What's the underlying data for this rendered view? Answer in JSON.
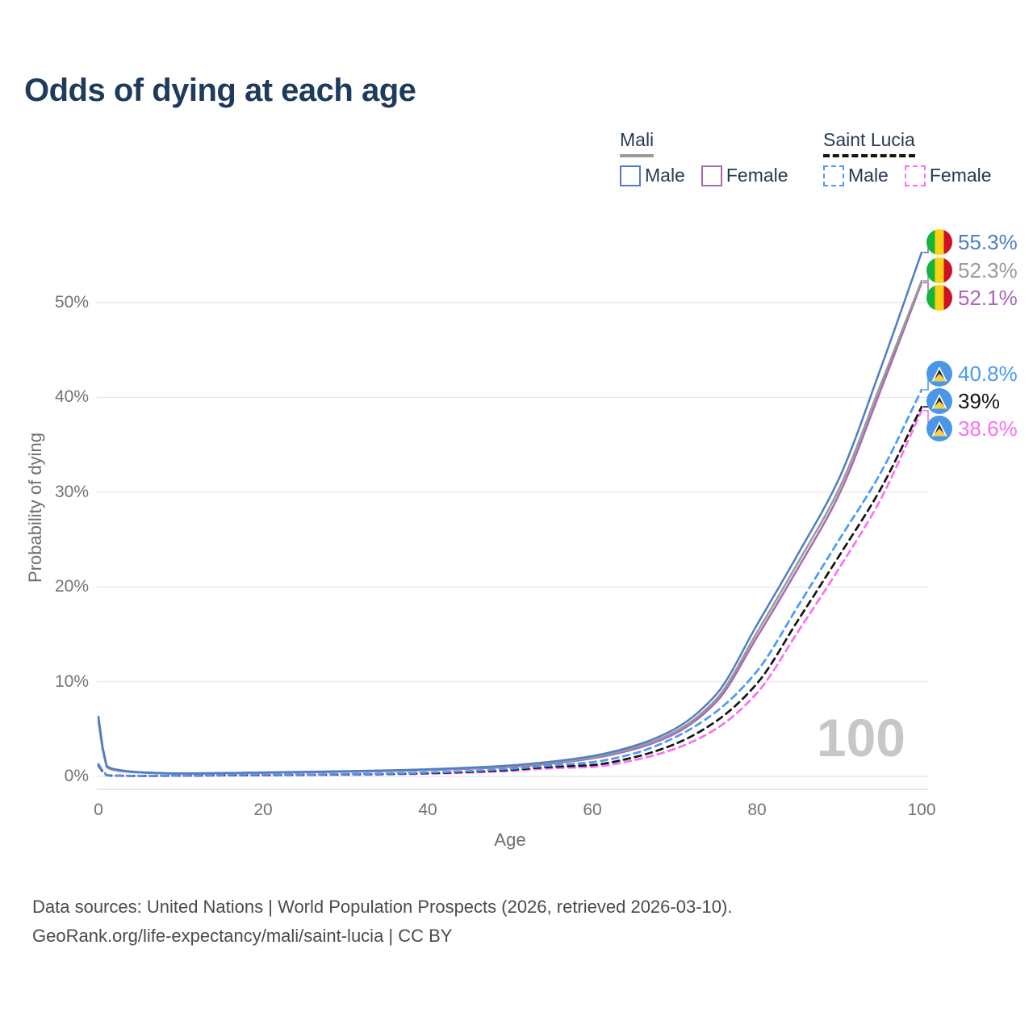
{
  "title": "Odds of dying at each age",
  "legend": {
    "mali": {
      "name": "Mali",
      "sample_style": "solid",
      "sample_color": "#9a9a9a",
      "male_label": "Male",
      "female_label": "Female"
    },
    "saint_lucia": {
      "name": "Saint Lucia",
      "sample_style": "dashed",
      "sample_color": "#151515",
      "male_label": "Male",
      "female_label": "Female"
    }
  },
  "chart_data": {
    "type": "line",
    "title": "Odds of dying at each age",
    "xlabel": "Age",
    "ylabel": "Probability of dying",
    "xlim": [
      0,
      100
    ],
    "ylim_percent": [
      0,
      57
    ],
    "grid": "horizontal",
    "legend_position": "top-right",
    "age_counter": "100",
    "x_ticks": {
      "values": [
        0,
        20,
        40,
        60,
        80,
        100
      ],
      "labels": [
        "0",
        "20",
        "40",
        "60",
        "80",
        "100"
      ]
    },
    "y_ticks": {
      "values": [
        0,
        10,
        20,
        30,
        40,
        50
      ],
      "labels": [
        "0%",
        "10%",
        "20%",
        "30%",
        "40%",
        "50%"
      ]
    },
    "x": [
      0,
      1,
      2,
      5,
      10,
      15,
      20,
      25,
      30,
      35,
      40,
      45,
      50,
      55,
      60,
      65,
      70,
      75,
      80,
      85,
      90,
      95,
      100
    ],
    "series": [
      {
        "name": "Mali Male",
        "country": "Mali",
        "sex": "Male",
        "line_style": "solid",
        "color": "#4d7ec4",
        "flag": "mali",
        "end_label": "55.3%",
        "values_percent": [
          6.3,
          1.1,
          0.75,
          0.45,
          0.32,
          0.35,
          0.42,
          0.48,
          0.55,
          0.63,
          0.75,
          0.92,
          1.15,
          1.55,
          2.15,
          3.2,
          5.0,
          8.6,
          16.0,
          23.5,
          31.5,
          43.0,
          55.3
        ]
      },
      {
        "name": "Mali Combined",
        "country": "Mali",
        "sex": "Combined",
        "line_style": "solid",
        "color": "#9a9a9a",
        "flag": "mali",
        "end_label": "52.3%",
        "values_percent": [
          6.05,
          1.02,
          0.7,
          0.42,
          0.3,
          0.33,
          0.39,
          0.45,
          0.51,
          0.59,
          0.7,
          0.86,
          1.08,
          1.45,
          2.0,
          3.0,
          4.7,
          8.1,
          15.2,
          22.6,
          30.4,
          41.3,
          52.3
        ]
      },
      {
        "name": "Mali Female",
        "country": "Mali",
        "sex": "Female",
        "line_style": "solid",
        "color": "#a868b3",
        "flag": "mali",
        "end_label": "52.1%",
        "values_percent": [
          5.8,
          0.95,
          0.65,
          0.4,
          0.28,
          0.31,
          0.37,
          0.42,
          0.48,
          0.55,
          0.66,
          0.8,
          1.0,
          1.35,
          1.9,
          2.85,
          4.5,
          7.8,
          14.7,
          22.0,
          29.8,
          40.7,
          52.1
        ]
      },
      {
        "name": "Saint Lucia Male",
        "country": "Saint Lucia",
        "sex": "Male",
        "line_style": "dashed",
        "color": "#4a9af5",
        "flag": "saint-lucia",
        "end_label": "40.8%",
        "values_percent": [
          1.3,
          0.15,
          0.09,
          0.06,
          0.08,
          0.13,
          0.17,
          0.2,
          0.24,
          0.3,
          0.4,
          0.55,
          0.8,
          1.15,
          1.5,
          2.4,
          4.1,
          6.8,
          11.1,
          18.0,
          25.0,
          32.0,
          40.8
        ]
      },
      {
        "name": "Saint Lucia Combined",
        "country": "Saint Lucia",
        "sex": "Combined",
        "line_style": "dashed",
        "color": "#151515",
        "flag": "saint-lucia",
        "end_label": "39%",
        "values_percent": [
          1.2,
          0.13,
          0.08,
          0.05,
          0.07,
          0.11,
          0.14,
          0.17,
          0.21,
          0.26,
          0.34,
          0.47,
          0.68,
          1.0,
          1.2,
          2.0,
          3.4,
          5.8,
          9.8,
          16.5,
          23.3,
          30.3,
          39.0
        ]
      },
      {
        "name": "Saint Lucia Female",
        "country": "Saint Lucia",
        "sex": "Female",
        "line_style": "dashed",
        "color": "#fb70f1",
        "flag": "saint-lucia",
        "end_label": "38.6%",
        "values_percent": [
          1.1,
          0.11,
          0.07,
          0.05,
          0.06,
          0.09,
          0.12,
          0.15,
          0.18,
          0.22,
          0.29,
          0.4,
          0.57,
          0.85,
          1.0,
          1.7,
          2.9,
          5.0,
          8.8,
          15.3,
          22.0,
          29.2,
          38.6
        ]
      }
    ]
  },
  "footer": {
    "line1": "Data sources: United Nations | World Population Prospects (2026, retrieved 2026-03-10).",
    "line2": "GeoRank.org/life-expectancy/mali/saint-lucia | CC BY"
  }
}
